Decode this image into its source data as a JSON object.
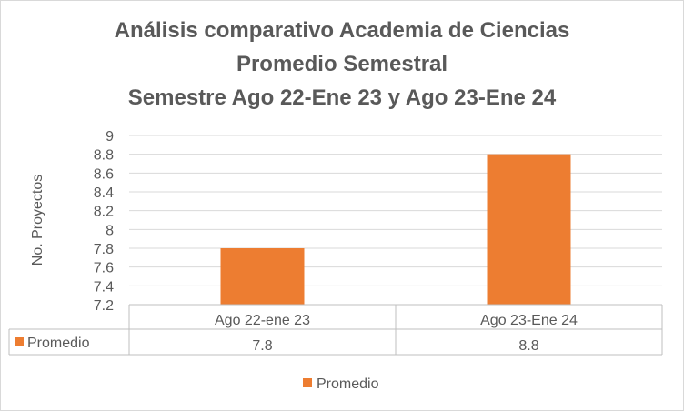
{
  "chart_data": {
    "type": "bar",
    "title_lines": [
      "Análisis comparativo Academia de Ciencias",
      "Promedio Semestral",
      "Semestre Ago 22-Ene 23 y Ago 23-Ene 24"
    ],
    "xlabel": "",
    "ylabel": "No. Proyectos",
    "ylim": [
      7.2,
      9
    ],
    "yticks": [
      "9",
      "8.8",
      "8.6",
      "8.4",
      "8.2",
      "8",
      "7.8",
      "7.6",
      "7.4",
      "7.2"
    ],
    "categories": [
      "Ago 22-ene 23",
      "Ago 23-Ene 24"
    ],
    "series": [
      {
        "name": "Promedio",
        "values": [
          7.8,
          8.8
        ],
        "color": "#ED7D31"
      }
    ],
    "data_table": {
      "row_label": "Promedio",
      "cells": [
        "7.8",
        "8.8"
      ]
    },
    "legend": {
      "position": "bottom",
      "label": "Promedio"
    },
    "grid": true
  }
}
